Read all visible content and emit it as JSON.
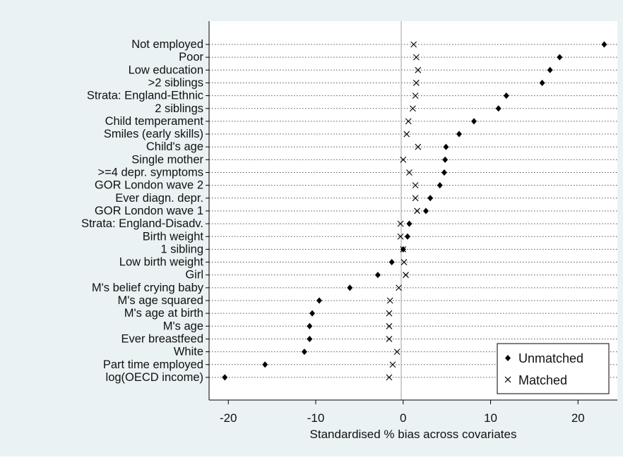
{
  "chart_data": {
    "type": "scatter",
    "title": "",
    "xlabel": "Standardised % bias across covariates",
    "ylabel": "",
    "xlim": [
      -22.2,
      24.5
    ],
    "xticks": [
      -20,
      -10,
      0,
      10,
      20
    ],
    "grid": "dotted horizontal row lines",
    "legend_position": "bottom-right",
    "reference_line": 0,
    "categories": [
      "Not employed",
      "Poor",
      "Low education",
      ">2 siblings",
      "Strata: England-Ethnic",
      "2 siblings",
      "Child temperament",
      "Smiles (early skills)",
      "Child's age",
      "Single mother",
      ">=4 depr. symptoms",
      "GOR London wave 2",
      "Ever diagn. depr.",
      "GOR London wave 1",
      "Strata: England-Disadv.",
      "Birth weight",
      "1 sibling",
      "Low birth weight",
      "Girl",
      "M's belief crying baby",
      "M's age squared",
      "M's age at birth",
      "M's age",
      "Ever breastfeed",
      "White",
      "Part time employed",
      "log(OECD income)"
    ],
    "series": [
      {
        "name": "Unmatched",
        "marker": "diamond",
        "values": [
          23.0,
          17.9,
          16.8,
          15.9,
          11.8,
          10.9,
          8.1,
          6.4,
          4.9,
          4.8,
          4.7,
          4.2,
          3.1,
          2.6,
          0.7,
          0.5,
          0.0,
          -1.3,
          -2.9,
          -6.1,
          -9.6,
          -10.4,
          -10.7,
          -10.7,
          -11.3,
          -15.8,
          -20.4
        ]
      },
      {
        "name": "Matched",
        "marker": "x",
        "values": [
          1.2,
          1.5,
          1.7,
          1.5,
          1.4,
          1.1,
          0.6,
          0.4,
          1.7,
          0.0,
          0.7,
          1.4,
          1.4,
          1.6,
          -0.3,
          -0.3,
          0.0,
          0.1,
          0.3,
          -0.5,
          -1.5,
          -1.6,
          -1.6,
          -1.6,
          -0.7,
          -1.2,
          -1.6
        ]
      }
    ],
    "colors": {
      "background": "#eaf2f3",
      "plot_area": "#ffffff",
      "marker": "#000000",
      "reference_line": "#a0a0a0"
    }
  }
}
